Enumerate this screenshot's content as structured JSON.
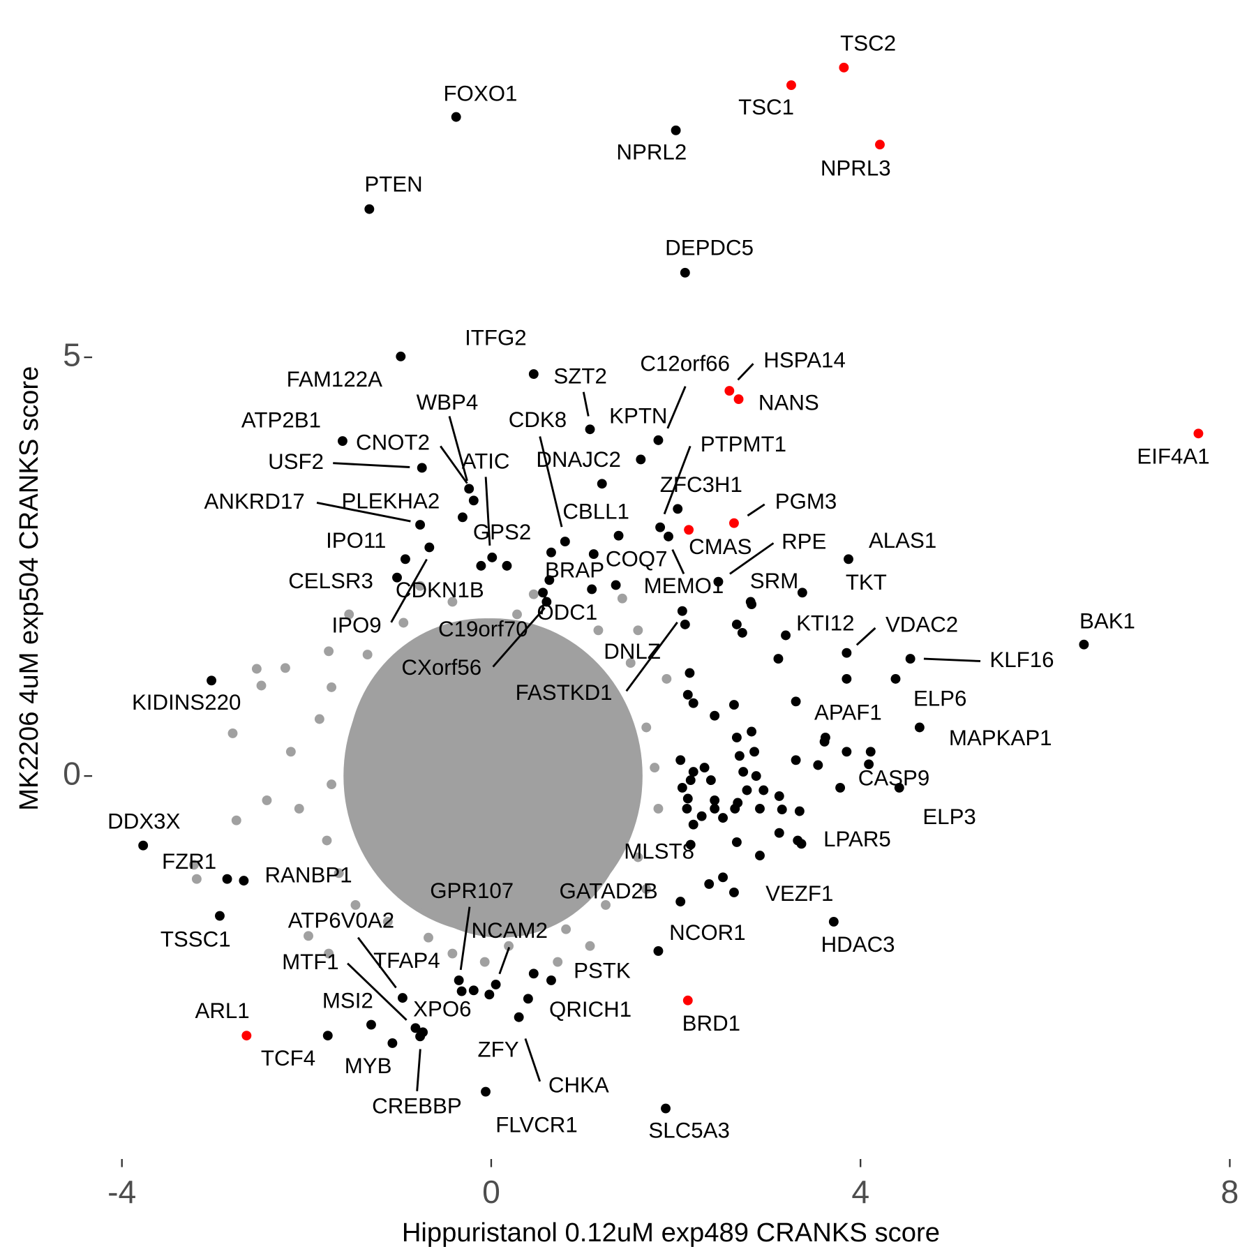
{
  "chart_data": {
    "type": "scatter",
    "x_label": "Hippuristanol 0.12uM exp489 CRANKS score",
    "y_label": "MK2206 4uM exp504 CRANKS score",
    "xlim": [
      -4.2,
      8.1
    ],
    "ylim": [
      -4.4,
      8.9
    ],
    "xticks": [
      -4,
      0,
      4,
      8
    ],
    "yticks": [
      0,
      5
    ],
    "series": [
      {
        "color": "#a0a0a0",
        "x": [
          -1.76,
          -2.54,
          -2.23,
          -2.49,
          -2.8,
          -2.43,
          -2.76,
          -3.22,
          -3.19,
          -1.98,
          -1.76,
          -1.73,
          -1.78,
          -2.08,
          -2.17,
          -1.86,
          -1.54,
          -0.77,
          -0.42,
          0.46,
          1.42,
          1.59,
          1.9,
          1.68,
          1.81,
          1.59,
          1.24,
          1.07,
          0.72,
          -0.07,
          -0.42,
          -1.12,
          -1.47,
          -1.65,
          -1.73,
          -1.34,
          -0.95,
          0.28,
          1.16,
          1.51,
          1.77,
          1.68,
          0.81,
          0.19,
          -0.68
        ],
        "values": [
          1.49,
          1.28,
          1.29,
          1.08,
          0.51,
          -0.29,
          -0.53,
          -1.06,
          -1.23,
          -1.91,
          -2.12,
          -0.1,
          -0.77,
          -0.39,
          0.29,
          0.68,
          1.93,
          2.27,
          2.08,
          2.17,
          2.12,
          1.74,
          1.16,
          0.58,
          -0.39,
          -0.97,
          -1.54,
          -2.03,
          -2.22,
          -2.22,
          -2.12,
          -1.74,
          -1.54,
          -1.16,
          1.06,
          1.45,
          1.83,
          1.93,
          1.74,
          1.35,
          0.1,
          -1.35,
          -1.83,
          -2.03,
          -1.93
        ]
      },
      {
        "color": "#000000",
        "x": [
          2.15,
          2.13,
          2.19,
          2.42,
          2.63,
          2.66,
          2.82,
          2.69,
          2.85,
          2.87,
          2.77,
          2.95,
          2.91,
          3.12,
          3.15,
          3.34,
          3.12,
          3.32,
          3.3,
          3.54,
          3.61,
          3.85,
          4.11,
          3.78,
          2.67,
          2.42,
          2.42,
          2.28,
          2.19,
          2.12,
          2.07,
          2.05,
          2.19,
          2.31,
          2.38,
          2.64,
          2.51,
          2.66,
          2.51,
          2.63,
          3.3,
          3.11,
          2.72,
          2.66,
          2.81,
          3.85,
          2.73,
          2.16,
          2.13,
          1.81,
          0.46,
          -0.19,
          1.35,
          1.09
        ],
        "values": [
          1.23,
          0.97,
          0.87,
          0.72,
          0.85,
          0.46,
          0.53,
          0.24,
          0.29,
          0,
          -0.17,
          -0.17,
          -0.39,
          -0.24,
          -0.4,
          -0.42,
          -0.68,
          -0.77,
          0.19,
          0.13,
          0.41,
          0.29,
          0.29,
          -0.14,
          -0.32,
          -0.29,
          -0.39,
          -0.48,
          -0.58,
          -0.39,
          -0.14,
          0.19,
          0.05,
          0.1,
          -0.05,
          -0.39,
          -0.5,
          -0.79,
          -1.21,
          -1.39,
          0.89,
          1.4,
          1.71,
          1.81,
          2.08,
          1.16,
          0.05,
          -0.05,
          -0.27,
          -2.09,
          -2.36,
          -2.56,
          2.28,
          2.23
        ]
      },
      {
        "color": "#000000",
        "point_labels": [
          "FOXO1",
          "NPRL2",
          "PTEN",
          "DEPDC5",
          "FAM122A",
          "ITFG2",
          "SZT2",
          "C12orf66",
          "KPTN",
          "DNAJC2",
          "ATP2B1",
          "WBP4",
          "CNOT2",
          "ATIC",
          "GPS2",
          "USF2",
          "CDK8",
          "ANKRD17",
          "PLEKHA2",
          "IPO9",
          "IPO11",
          "CELSR3",
          "CDKN1B",
          "CBLL1",
          "PTPMT1",
          "ZFC3H1",
          "RPE",
          "ALAS1",
          "TKT",
          "SRM",
          "COQ7",
          "BRAP",
          "MEMO1",
          "ODC1",
          "C19orf70",
          "CXorf56",
          "DNLZ",
          "FASTKD1",
          "KTI12",
          "VDAC2",
          "KLF16",
          "BAK1",
          "ELP6",
          "APAF1",
          "MAPKAP1",
          "CASP9",
          "ELP3",
          "LPAR5",
          "VEZF1",
          "HDAC3",
          "NCOR1",
          "MLST8",
          "GATAD2B",
          "KIDINS220",
          "DDX3X",
          "FZR1",
          "RANBP1",
          "TSSC1",
          "GPR107",
          "ATP6V0A2",
          "NCAM2",
          "TFAP4",
          "MTF1",
          "PSTK",
          "MSI2",
          "XPO6",
          "QRICH1",
          "TCF4",
          "MYB",
          "ZFY",
          "CHKA",
          "CREBBP",
          "FLVCR1",
          "SLC5A3"
        ],
        "x": [
          -0.38,
          2.0,
          -1.32,
          2.1,
          -0.98,
          0.46,
          1.07,
          1.81,
          1.62,
          1.2,
          -1.61,
          -0.24,
          -0.19,
          0.01,
          -0.11,
          -0.75,
          0.8,
          -0.77,
          -0.31,
          -0.67,
          -0.93,
          -1.02,
          0.17,
          1.38,
          1.83,
          2.02,
          2.46,
          3.87,
          3.37,
          2.82,
          1.11,
          0.65,
          1.92,
          0.63,
          0.56,
          0.6,
          2.07,
          2.1,
          3.19,
          3.85,
          4.54,
          6.42,
          4.38,
          3.62,
          4.64,
          4.09,
          4.42,
          3.36,
          2.91,
          3.71,
          2.36,
          2.16,
          2.05,
          -3.03,
          -3.77,
          -2.86,
          -2.68,
          -2.94,
          -0.35,
          -0.96,
          0.05,
          -0.32,
          -0.82,
          0.65,
          -1.3,
          -0.74,
          0.4,
          -1.77,
          -1.07,
          -0.02,
          0.3,
          -0.77,
          -0.06,
          1.89
        ],
        "values": [
          7.87,
          7.71,
          6.77,
          6.01,
          5.01,
          4.8,
          4.14,
          4.01,
          3.78,
          3.49,
          4.0,
          3.43,
          3.29,
          2.61,
          2.51,
          3.68,
          2.8,
          3.0,
          3.09,
          2.73,
          2.59,
          2.37,
          2.51,
          2.87,
          2.97,
          3.19,
          2.32,
          2.59,
          2.19,
          2.05,
          2.65,
          2.67,
          2.86,
          2.34,
          2.19,
          2.08,
          1.97,
          1.81,
          1.68,
          1.47,
          1.4,
          1.57,
          1.16,
          0.46,
          0.58,
          0.14,
          -0.14,
          -0.81,
          -0.95,
          -1.74,
          -1.29,
          -0.82,
          -1.5,
          1.14,
          -0.83,
          -1.23,
          -1.25,
          -1.67,
          -2.44,
          -2.65,
          -2.49,
          -2.57,
          -3.01,
          -2.44,
          -2.97,
          -3.06,
          -2.66,
          -3.1,
          -3.19,
          -2.61,
          -2.88,
          -3.11,
          -3.77,
          -3.97
        ]
      },
      {
        "color": "#ff0000",
        "point_labels": [
          "TSC2",
          "TSC1",
          "NPRL3",
          "HSPA14",
          "NANS",
          "EIF4A1",
          "PGM3",
          "CMAS",
          "BRD1",
          "ARL1"
        ],
        "x": [
          3.82,
          3.25,
          4.21,
          2.58,
          2.68,
          7.66,
          2.63,
          2.14,
          2.13,
          -2.65
        ],
        "values": [
          8.46,
          8.25,
          7.54,
          4.6,
          4.5,
          4.09,
          3.02,
          2.94,
          -2.68,
          -3.1
        ]
      }
    ]
  }
}
